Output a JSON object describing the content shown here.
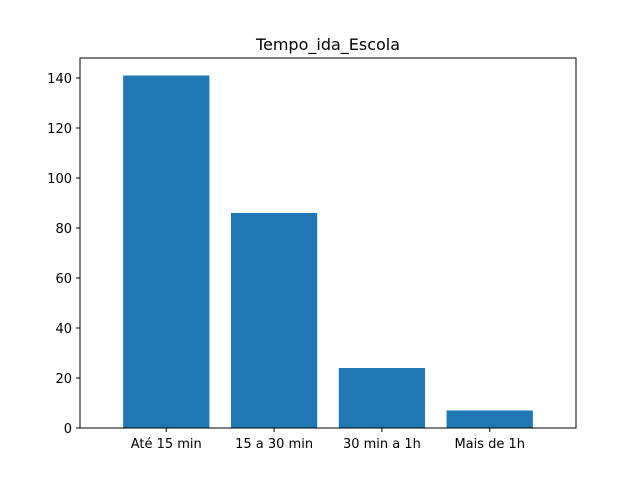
{
  "chart_data": {
    "type": "bar",
    "title": "Tempo_ida_Escola",
    "xlabel": "",
    "ylabel": "",
    "categories": [
      "Até 15 min",
      "15 a 30 min",
      "30 min a 1h",
      "Mais de 1h"
    ],
    "values": [
      141,
      86,
      24,
      7
    ],
    "ylim": [
      0,
      148
    ],
    "yticks": [
      0,
      20,
      40,
      60,
      80,
      100,
      120,
      140
    ],
    "grid": false,
    "legend": "none",
    "bar_color": "#1f77b4"
  }
}
